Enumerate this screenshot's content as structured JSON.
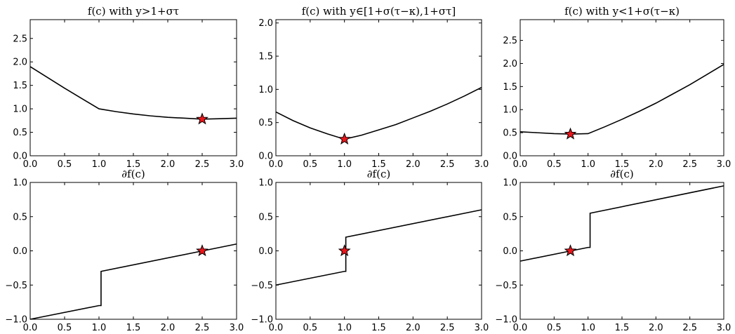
{
  "chart_data": [
    {
      "type": "line",
      "title": "f(c) with y>1+στ",
      "xlim": [
        0,
        3
      ],
      "ylim": [
        0,
        2.9
      ],
      "xticks": [
        0.0,
        0.5,
        1.0,
        1.5,
        2.0,
        2.5,
        3.0
      ],
      "yticks": [
        0.0,
        0.5,
        1.0,
        1.5,
        2.0,
        2.5
      ],
      "xtick_labels": [
        "0.0",
        "0.5",
        "1.0",
        "1.5",
        "2.0",
        "2.5",
        "3.0"
      ],
      "ytick_labels": [
        "0.0",
        "0.5",
        "1.0",
        "1.5",
        "2.0",
        "2.5"
      ],
      "series": [
        {
          "x": [
            0,
            0.25,
            0.5,
            0.75,
            1.0,
            1.25,
            1.5,
            1.75,
            2.0,
            2.25,
            2.5,
            2.75,
            3.0
          ],
          "y": [
            1.9,
            1.67,
            1.44,
            1.22,
            1.0,
            0.94,
            0.89,
            0.85,
            0.82,
            0.8,
            0.78,
            0.79,
            0.8
          ]
        }
      ],
      "marker": {
        "x": 2.5,
        "y": 0.78
      },
      "grid": false
    },
    {
      "type": "line",
      "title": "f(c) with y∈[1+σ(τ−κ),1+στ]",
      "xlim": [
        0,
        3
      ],
      "ylim": [
        0,
        2.05
      ],
      "xticks": [
        0.0,
        0.5,
        1.0,
        1.5,
        2.0,
        2.5,
        3.0
      ],
      "yticks": [
        0.0,
        0.5,
        1.0,
        1.5,
        2.0
      ],
      "xtick_labels": [
        "0.0",
        "0.5",
        "1.0",
        "1.5",
        "2.0",
        "2.5",
        "3.0"
      ],
      "ytick_labels": [
        "0.0",
        "0.5",
        "1.0",
        "1.5",
        "2.0"
      ],
      "series": [
        {
          "x": [
            0,
            0.25,
            0.5,
            0.75,
            1.0,
            1.25,
            1.5,
            1.75,
            2.0,
            2.25,
            2.5,
            2.75,
            3.0
          ],
          "y": [
            0.66,
            0.53,
            0.42,
            0.33,
            0.25,
            0.31,
            0.39,
            0.47,
            0.57,
            0.67,
            0.78,
            0.9,
            1.03
          ]
        }
      ],
      "marker": {
        "x": 1.0,
        "y": 0.25
      },
      "grid": false
    },
    {
      "type": "line",
      "title": "f(c) with y<1+σ(τ−κ)",
      "xlim": [
        0,
        3
      ],
      "ylim": [
        0,
        2.95
      ],
      "xticks": [
        0.0,
        0.5,
        1.0,
        1.5,
        2.0,
        2.5,
        3.0
      ],
      "yticks": [
        0.0,
        0.5,
        1.0,
        1.5,
        2.0,
        2.5
      ],
      "xtick_labels": [
        "0.0",
        "0.5",
        "1.0",
        "1.5",
        "2.0",
        "2.5",
        "3.0"
      ],
      "ytick_labels": [
        "0.0",
        "0.5",
        "1.0",
        "1.5",
        "2.0",
        "2.5"
      ],
      "series": [
        {
          "x": [
            0,
            0.25,
            0.5,
            0.75,
            1.0,
            1.25,
            1.5,
            1.75,
            2.0,
            2.25,
            2.5,
            2.75,
            3.0
          ],
          "y": [
            0.52,
            0.5,
            0.48,
            0.47,
            0.48,
            0.63,
            0.79,
            0.96,
            1.14,
            1.34,
            1.54,
            1.76,
            1.98
          ]
        }
      ],
      "marker": {
        "x": 0.74,
        "y": 0.47
      },
      "grid": false
    },
    {
      "type": "line",
      "title": "∂f(c)",
      "xlim": [
        0,
        3
      ],
      "ylim": [
        -1,
        1
      ],
      "xticks": [
        0.0,
        0.5,
        1.0,
        1.5,
        2.0,
        2.5,
        3.0
      ],
      "yticks": [
        -1.0,
        -0.5,
        0.0,
        0.5,
        1.0
      ],
      "xtick_labels": [
        "0.0",
        "0.5",
        "1.0",
        "1.5",
        "2.0",
        "2.5",
        "3.0"
      ],
      "ytick_labels": [
        "−1.0",
        "−0.5",
        "0.0",
        "0.5",
        "1.0"
      ],
      "series": [
        {
          "x": [
            0,
            1.0,
            1.0,
            1.03,
            1.03,
            3.0
          ],
          "y": [
            -1.0,
            -0.8,
            -0.8,
            -0.8,
            -0.3,
            0.1
          ]
        }
      ],
      "marker": {
        "x": 2.5,
        "y": 0.0
      },
      "grid": false
    },
    {
      "type": "line",
      "title": "∂f(c)",
      "xlim": [
        0,
        3
      ],
      "ylim": [
        -1,
        1
      ],
      "xticks": [
        0.0,
        0.5,
        1.0,
        1.5,
        2.0,
        2.5,
        3.0
      ],
      "yticks": [
        -1.0,
        -0.5,
        0.0,
        0.5,
        1.0
      ],
      "xtick_labels": [
        "0.0",
        "0.5",
        "1.0",
        "1.5",
        "2.0",
        "2.5",
        "3.0"
      ],
      "ytick_labels": [
        "−1.0",
        "−0.5",
        "0.0",
        "0.5",
        "1.0"
      ],
      "series": [
        {
          "x": [
            0,
            1.0,
            1.0,
            1.02,
            1.02,
            3.0
          ],
          "y": [
            -0.5,
            -0.3,
            -0.3,
            -0.3,
            0.2,
            0.6
          ]
        }
      ],
      "marker": {
        "x": 1.0,
        "y": 0.0
      },
      "grid": false
    },
    {
      "type": "line",
      "title": "∂f(c)",
      "xlim": [
        0,
        3
      ],
      "ylim": [
        -1,
        1
      ],
      "xticks": [
        0.0,
        0.5,
        1.0,
        1.5,
        2.0,
        2.5,
        3.0
      ],
      "yticks": [
        -1.0,
        -0.5,
        0.0,
        0.5,
        1.0
      ],
      "xtick_labels": [
        "0.0",
        "0.5",
        "1.0",
        "1.5",
        "2.0",
        "2.5",
        "3.0"
      ],
      "ytick_labels": [
        "−1.0",
        "−0.5",
        "0.0",
        "0.5",
        "1.0"
      ],
      "series": [
        {
          "x": [
            0,
            1.0,
            1.0,
            1.03,
            1.03,
            3.0
          ],
          "y": [
            -0.15,
            0.05,
            0.05,
            0.05,
            0.55,
            0.95
          ]
        }
      ],
      "marker": {
        "x": 0.74,
        "y": 0.0
      },
      "grid": false
    }
  ]
}
